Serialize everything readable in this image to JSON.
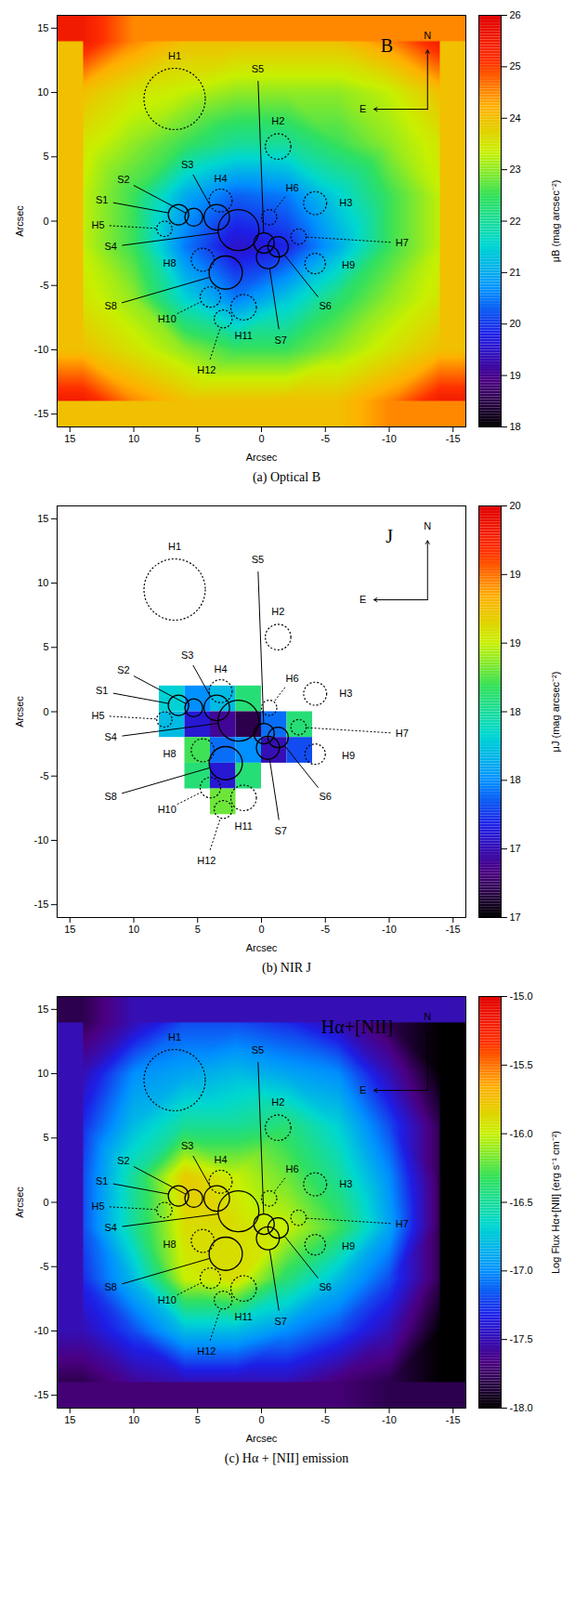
{
  "regions": [
    {
      "name": "S1",
      "x": 6.5,
      "y": 0.5,
      "r": 0.8,
      "line_style": "solid"
    },
    {
      "name": "S2",
      "x": 5.3,
      "y": 0.3,
      "r": 0.7,
      "line_style": "solid"
    },
    {
      "name": "S3",
      "x": 3.5,
      "y": 0.3,
      "r": 1.0,
      "line_style": "solid"
    },
    {
      "name": "S4",
      "x": 1.8,
      "y": -0.7,
      "r": 1.6,
      "line_style": "solid"
    },
    {
      "name": "S5",
      "x": -0.2,
      "y": -1.7,
      "r": 0.8,
      "line_style": "solid"
    },
    {
      "name": "S6",
      "x": -1.3,
      "y": -2.0,
      "r": 0.8,
      "line_style": "solid"
    },
    {
      "name": "S7",
      "x": -0.5,
      "y": -2.8,
      "r": 0.9,
      "line_style": "solid"
    },
    {
      "name": "S8",
      "x": 2.8,
      "y": -4.0,
      "r": 1.3,
      "line_style": "solid"
    },
    {
      "name": "H1",
      "x": 6.8,
      "y": 9.5,
      "r": 2.4,
      "line_style": "dotted"
    },
    {
      "name": "H2",
      "x": -1.3,
      "y": 5.8,
      "r": 1.0,
      "line_style": "dotted"
    },
    {
      "name": "H3",
      "x": -4.2,
      "y": 1.4,
      "r": 0.9,
      "line_style": "dotted"
    },
    {
      "name": "H4",
      "x": 3.2,
      "y": 1.6,
      "r": 0.9,
      "line_style": "dotted"
    },
    {
      "name": "H5",
      "x": 7.6,
      "y": -0.6,
      "r": 0.6,
      "line_style": "dotted"
    },
    {
      "name": "H6",
      "x": -0.6,
      "y": 0.3,
      "r": 0.6,
      "line_style": "dotted"
    },
    {
      "name": "H7",
      "x": -2.9,
      "y": -1.2,
      "r": 0.6,
      "line_style": "dotted"
    },
    {
      "name": "H8",
      "x": 4.6,
      "y": -3.0,
      "r": 0.9,
      "line_style": "dotted"
    },
    {
      "name": "H9",
      "x": -4.2,
      "y": -3.3,
      "r": 0.8,
      "line_style": "dotted"
    },
    {
      "name": "H10",
      "x": 4.0,
      "y": -5.9,
      "r": 0.8,
      "line_style": "dotted"
    },
    {
      "name": "H11",
      "x": 1.4,
      "y": -6.7,
      "r": 1.0,
      "line_style": "dotted"
    },
    {
      "name": "H12",
      "x": 3.0,
      "y": -7.6,
      "r": 0.7,
      "line_style": "dotted"
    }
  ],
  "compass": {
    "north": "N",
    "east": "E"
  },
  "chart_data": [
    {
      "type": "heatmap",
      "title": "B",
      "caption": "(a) Optical B",
      "xlabel": "Arcsec",
      "ylabel": "Arcsec",
      "xlim": [
        16,
        -16
      ],
      "ylim": [
        -16,
        16
      ],
      "xticks": [
        15,
        10,
        5,
        0,
        -5,
        -10,
        -15
      ],
      "yticks": [
        -15,
        -10,
        -5,
        0,
        5,
        10,
        15
      ],
      "grid_x": [
        14,
        10,
        6,
        2,
        -2,
        -6,
        -10,
        -14
      ],
      "grid_y": [
        14,
        10,
        6,
        2,
        -2,
        -6,
        -10,
        -14
      ],
      "cells": [
        [
          25.5,
          24.5,
          24.0,
          24.0,
          24.0,
          24.0,
          24.5,
          25.5
        ],
        [
          24.0,
          23.5,
          23.3,
          23.0,
          23.0,
          23.0,
          23.3,
          24.0
        ],
        [
          23.5,
          23.0,
          22.5,
          22.0,
          22.0,
          22.5,
          23.0,
          23.5
        ],
        [
          23.3,
          22.5,
          21.0,
          20.3,
          20.5,
          21.5,
          22.5,
          23.3
        ],
        [
          23.3,
          22.5,
          20.5,
          19.5,
          19.8,
          21.0,
          22.5,
          23.3
        ],
        [
          23.5,
          23.0,
          21.5,
          20.5,
          21.3,
          22.3,
          23.0,
          23.5
        ],
        [
          24.0,
          23.5,
          23.0,
          22.5,
          22.5,
          23.0,
          23.5,
          24.0
        ],
        [
          25.5,
          24.5,
          24.0,
          24.0,
          24.0,
          24.0,
          24.5,
          25.5
        ]
      ],
      "colorbar": {
        "label": "μB (mag arcsec⁻²)",
        "range": [
          18,
          26
        ],
        "ticks": [
          18,
          19,
          20,
          21,
          22,
          23,
          24,
          25,
          26
        ]
      }
    },
    {
      "type": "heatmap",
      "title": "J",
      "caption": "(b) NIR J",
      "xlabel": "Arcsec",
      "ylabel": "Arcsec",
      "xlim": [
        16,
        -16
      ],
      "ylim": [
        -16,
        16
      ],
      "xticks": [
        15,
        10,
        5,
        0,
        -5,
        -10,
        -15
      ],
      "yticks": [
        -15,
        -10,
        -5,
        0,
        5,
        10,
        15
      ],
      "grid_x": [
        7,
        5,
        3,
        1,
        -1,
        -3
      ],
      "grid_y": [
        1,
        -1,
        -3,
        -5,
        -7
      ],
      "cells": [
        [
          18.3,
          18.0,
          18.2,
          18.6,
          null,
          null
        ],
        [
          18.2,
          17.6,
          17.4,
          17.2,
          17.9,
          18.6
        ],
        [
          null,
          18.7,
          17.9,
          18.0,
          17.5,
          17.8
        ],
        [
          null,
          18.6,
          17.6,
          18.6,
          null,
          null
        ],
        [
          null,
          null,
          18.8,
          null,
          null,
          null
        ]
      ],
      "colorbar": {
        "label": "μJ (mag arcsec⁻²)",
        "range": [
          17,
          20
        ],
        "ticks": [
          {
            "value": 17,
            "label": "17"
          },
          {
            "value": 17.5,
            "label": "17"
          },
          {
            "value": 18,
            "label": "18"
          },
          {
            "value": 18.5,
            "label": "18"
          },
          {
            "value": 19,
            "label": "19"
          },
          {
            "value": 19.5,
            "label": "19"
          },
          {
            "value": 20,
            "label": "20"
          }
        ]
      }
    },
    {
      "type": "heatmap",
      "title": "Hα+[NII]",
      "caption": "(c) Hα + [NII] emission",
      "xlabel": "Arcsec",
      "ylabel": "Arcsec",
      "xlim": [
        16,
        -16
      ],
      "ylim": [
        -16,
        16
      ],
      "xticks": [
        15,
        10,
        5,
        0,
        -5,
        -10,
        -15
      ],
      "yticks": [
        -15,
        -10,
        -5,
        0,
        5,
        10,
        15
      ],
      "grid_x": [
        14,
        10,
        6,
        2,
        -2,
        -6,
        -10,
        -14
      ],
      "grid_y": [
        14,
        10,
        6,
        2,
        -2,
        -6,
        -10,
        -14
      ],
      "cells": [
        [
          -17.8,
          -17.5,
          -17.2,
          -17.2,
          -17.3,
          -17.5,
          -17.8,
          -18.0
        ],
        [
          -17.5,
          -17.0,
          -16.9,
          -16.8,
          -16.9,
          -17.0,
          -17.5,
          -18.0
        ],
        [
          -17.3,
          -16.8,
          -16.5,
          -16.5,
          -16.4,
          -16.7,
          -17.2,
          -17.8
        ],
        [
          -17.2,
          -16.5,
          -15.8,
          -16.0,
          -16.2,
          -16.5,
          -17.0,
          -17.8
        ],
        [
          -17.2,
          -16.5,
          -15.9,
          -15.9,
          -16.0,
          -16.3,
          -16.9,
          -17.8
        ],
        [
          -17.3,
          -16.8,
          -16.0,
          -15.9,
          -16.4,
          -16.8,
          -17.2,
          -17.8
        ],
        [
          -17.5,
          -17.2,
          -16.8,
          -16.8,
          -17.0,
          -17.2,
          -17.5,
          -18.0
        ],
        [
          -17.8,
          -17.6,
          -17.5,
          -17.5,
          -17.5,
          -17.7,
          -17.8,
          -18.0
        ]
      ],
      "colorbar": {
        "label": "Log Flux Hα+[NII] (erg s⁻¹ cm⁻²)",
        "range": [
          -15,
          -18
        ],
        "ticks": [
          {
            "value": -15,
            "label": "-15.0"
          },
          {
            "value": -15.5,
            "label": "-15.5"
          },
          {
            "value": -16,
            "label": "-16.0"
          },
          {
            "value": -16.5,
            "label": "-16.5"
          },
          {
            "value": -17,
            "label": "-17.0"
          },
          {
            "value": -17.5,
            "label": "-17.5"
          },
          {
            "value": -18,
            "label": "-18.0"
          }
        ]
      }
    }
  ]
}
